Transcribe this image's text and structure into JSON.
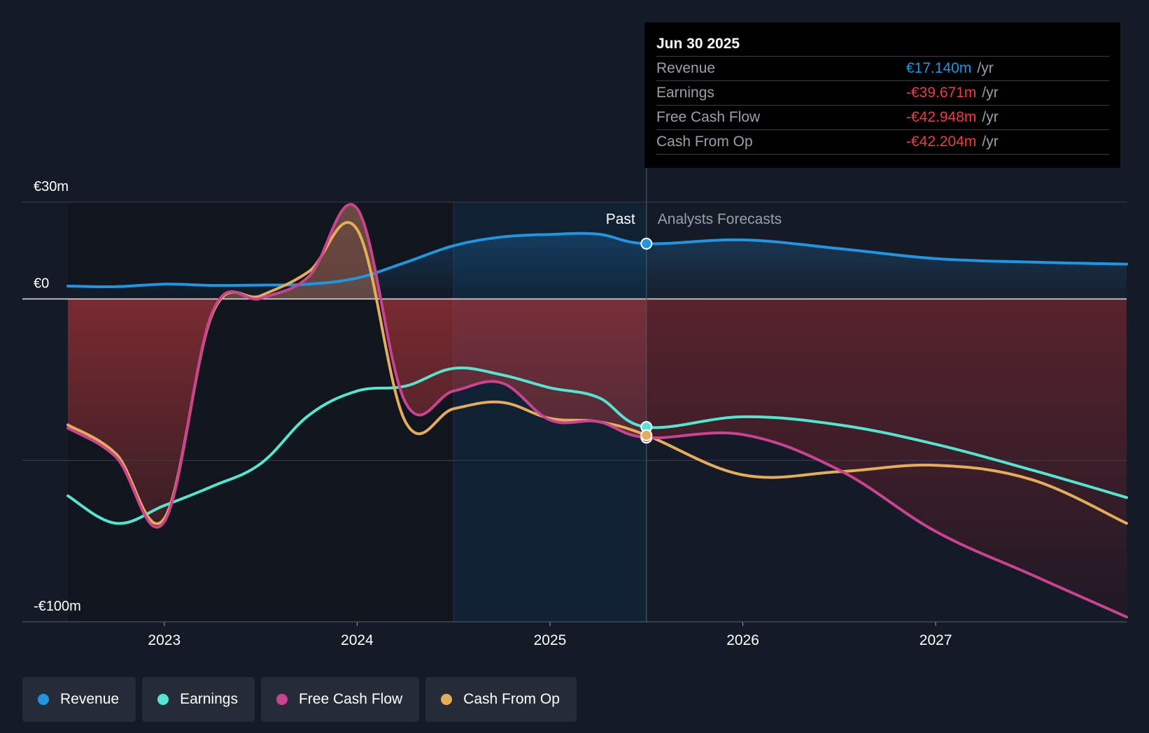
{
  "chart_data": {
    "type": "area",
    "currency": "€",
    "y_unit": "m",
    "ylim": [
      -100,
      30
    ],
    "ytick_labels": [
      {
        "value": 30,
        "label": "€30m"
      },
      {
        "value": 0,
        "label": "€0"
      },
      {
        "value": -100,
        "label": "-€100m"
      }
    ],
    "xlim": [
      2022.5,
      2027.99
    ],
    "xtick_labels": [
      {
        "value": 2023,
        "label": "2023"
      },
      {
        "value": 2024,
        "label": "2024"
      },
      {
        "value": 2025,
        "label": "2025"
      },
      {
        "value": 2026,
        "label": "2026"
      },
      {
        "value": 2027,
        "label": "2027"
      }
    ],
    "past_label": "Past",
    "forecast_label": "Analysts Forecasts",
    "past_end": 2025.5,
    "highlight_start": 2024.5,
    "series": [
      {
        "name": "Revenue",
        "color": "#2394df",
        "points": [
          [
            2022.5,
            4
          ],
          [
            2022.75,
            3.8
          ],
          [
            2023.0,
            4.6
          ],
          [
            2023.25,
            4.2
          ],
          [
            2023.5,
            4.3
          ],
          [
            2023.75,
            4.6
          ],
          [
            2024.0,
            6.5
          ],
          [
            2024.25,
            11.3
          ],
          [
            2024.5,
            16.5
          ],
          [
            2024.75,
            19.2
          ],
          [
            2025.0,
            20
          ],
          [
            2025.25,
            20.1
          ],
          [
            2025.5,
            17.14
          ],
          [
            2026.0,
            18.3
          ],
          [
            2026.5,
            15.6
          ],
          [
            2027.0,
            12.5
          ],
          [
            2027.5,
            11.4
          ],
          [
            2027.99,
            10.8
          ]
        ]
      },
      {
        "name": "Earnings",
        "color": "#56e3cf",
        "points": [
          [
            2022.5,
            -61
          ],
          [
            2022.75,
            -69.5
          ],
          [
            2023.0,
            -64
          ],
          [
            2023.25,
            -58
          ],
          [
            2023.5,
            -51
          ],
          [
            2023.75,
            -36
          ],
          [
            2024.0,
            -28.5
          ],
          [
            2024.25,
            -27
          ],
          [
            2024.5,
            -21.5
          ],
          [
            2024.75,
            -23.5
          ],
          [
            2025.0,
            -27.5
          ],
          [
            2025.25,
            -30.5
          ],
          [
            2025.5,
            -39.671
          ],
          [
            2026.0,
            -36.5
          ],
          [
            2026.5,
            -39
          ],
          [
            2027.0,
            -45
          ],
          [
            2027.5,
            -53
          ],
          [
            2027.99,
            -61.5
          ]
        ]
      },
      {
        "name": "Free Cash Flow",
        "color": "#c94390",
        "points": [
          [
            2022.5,
            -40
          ],
          [
            2022.75,
            -49
          ],
          [
            2023.0,
            -69
          ],
          [
            2023.25,
            -4
          ],
          [
            2023.5,
            0.2
          ],
          [
            2023.75,
            7
          ],
          [
            2024.0,
            28
          ],
          [
            2024.25,
            -32
          ],
          [
            2024.5,
            -28.5
          ],
          [
            2024.75,
            -26
          ],
          [
            2025.0,
            -37.5
          ],
          [
            2025.25,
            -38
          ],
          [
            2025.5,
            -42.948
          ],
          [
            2026.0,
            -42
          ],
          [
            2026.5,
            -53
          ],
          [
            2027.0,
            -72
          ],
          [
            2027.5,
            -85.5
          ],
          [
            2027.99,
            -98.5
          ]
        ]
      },
      {
        "name": "Cash From Op",
        "color": "#e5ac5b",
        "points": [
          [
            2022.5,
            -39
          ],
          [
            2022.75,
            -48
          ],
          [
            2023.0,
            -68
          ],
          [
            2023.25,
            -4.5
          ],
          [
            2023.5,
            1
          ],
          [
            2023.75,
            8.5
          ],
          [
            2024.0,
            21.5
          ],
          [
            2024.25,
            -38
          ],
          [
            2024.5,
            -34
          ],
          [
            2024.75,
            -32
          ],
          [
            2025.0,
            -37
          ],
          [
            2025.25,
            -38
          ],
          [
            2025.5,
            -42.204
          ],
          [
            2026.0,
            -54.5
          ],
          [
            2026.5,
            -53.5
          ],
          [
            2027.0,
            -51.5
          ],
          [
            2027.5,
            -56
          ],
          [
            2027.99,
            -69.5
          ]
        ]
      }
    ]
  },
  "tooltip": {
    "date": "Jun 30 2025",
    "rows": [
      {
        "label": "Revenue",
        "value": "€17.140m",
        "unit": "/yr",
        "color": "#2394df"
      },
      {
        "label": "Earnings",
        "value": "-€39.671m",
        "unit": "/yr",
        "color": "#e64047"
      },
      {
        "label": "Free Cash Flow",
        "value": "-€42.948m",
        "unit": "/yr",
        "color": "#e64047"
      },
      {
        "label": "Cash From Op",
        "value": "-€42.204m",
        "unit": "/yr",
        "color": "#e64047"
      }
    ]
  },
  "legend": [
    {
      "label": "Revenue",
      "color": "#2394df"
    },
    {
      "label": "Earnings",
      "color": "#56e3cf"
    },
    {
      "label": "Free Cash Flow",
      "color": "#c94390"
    },
    {
      "label": "Cash From Op",
      "color": "#e5ac5b"
    }
  ]
}
